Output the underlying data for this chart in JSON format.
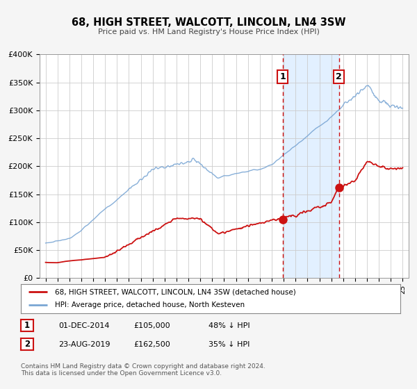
{
  "title": "68, HIGH STREET, WALCOTT, LINCOLN, LN4 3SW",
  "subtitle": "Price paid vs. HM Land Registry's House Price Index (HPI)",
  "ylim": [
    0,
    400000
  ],
  "yticks": [
    0,
    50000,
    100000,
    150000,
    200000,
    250000,
    300000,
    350000,
    400000
  ],
  "ytick_labels": [
    "£0",
    "£50K",
    "£100K",
    "£150K",
    "£200K",
    "£250K",
    "£300K",
    "£350K",
    "£400K"
  ],
  "xlim_start": 1994.5,
  "xlim_end": 2025.5,
  "hpi_color": "#7aa6d4",
  "price_color": "#cc1111",
  "bg_color": "#f5f5f5",
  "plot_bg_color": "#ffffff",
  "grid_color": "#cccccc",
  "shaded_color": "#ddeeff",
  "marker1_x": 2014.92,
  "marker1_y": 105000,
  "marker2_x": 2019.64,
  "marker2_y": 162500,
  "vline1_x": 2014.92,
  "vline2_x": 2019.64,
  "legend_line1": "68, HIGH STREET, WALCOTT, LINCOLN, LN4 3SW (detached house)",
  "legend_line2": "HPI: Average price, detached house, North Kesteven",
  "table_row1": [
    "1",
    "01-DEC-2014",
    "£105,000",
    "48% ↓ HPI"
  ],
  "table_row2": [
    "2",
    "23-AUG-2019",
    "£162,500",
    "35% ↓ HPI"
  ],
  "footnote1": "Contains HM Land Registry data © Crown copyright and database right 2024.",
  "footnote2": "This data is licensed under the Open Government Licence v3.0."
}
